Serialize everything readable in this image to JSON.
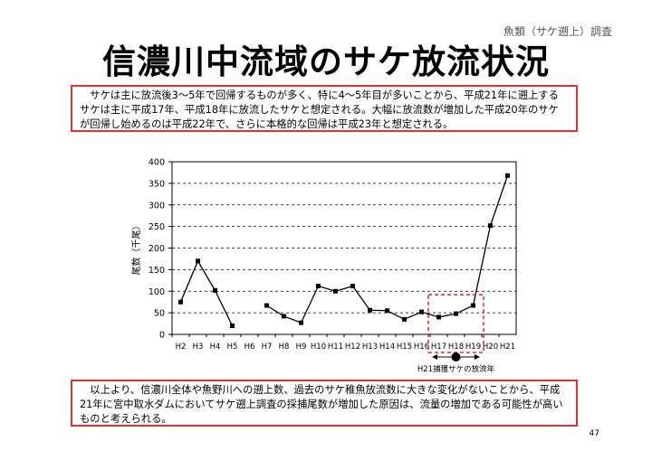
{
  "header": {
    "tag": "魚類（サケ遡上）調査",
    "title": "信濃川中流域のサケ放流状況"
  },
  "intro_text": "サケは主に放流後3～5年で回帰するものが多く、特に4～5年目が多いことから、平成21年に遡上するサケは主に平成17年、平成18年に放流したサケと想定される。大幅に放流数が増加した平成20年のサケが回帰し始めるのは平成22年で、さらに本格的な回帰は平成23年と想定される。",
  "conclusion_text": "以上より、信濃川全体や魚野川への遡上数、過去のサケ稚魚放流数に大きな変化がないことから、平成21年に宮中取水ダムにおいてサケ遡上調査の採捕尾数が増加した原因は、流量の増加である可能性が高いものと考えられる。",
  "page_number": "47",
  "colors": {
    "highlight": "#e03030",
    "line": "#000000"
  },
  "chart_data": {
    "type": "line",
    "title": "",
    "xlabel": "",
    "ylabel": "尾数（千尾）",
    "ylim": [
      0,
      400
    ],
    "yticks": [
      0,
      50,
      100,
      150,
      200,
      250,
      300,
      350,
      400
    ],
    "grid": "horizontal dashed",
    "categories": [
      "H2",
      "H3",
      "H4",
      "H5",
      "H6",
      "H7",
      "H8",
      "H9",
      "H10",
      "H11",
      "H12",
      "H13",
      "H14",
      "H15",
      "H16",
      "H17",
      "H18",
      "H19",
      "H20",
      "H21"
    ],
    "values": [
      75,
      170,
      102,
      20,
      null,
      67,
      42,
      27,
      112,
      100,
      112,
      56,
      55,
      35,
      52,
      40,
      48,
      67,
      252,
      368
    ],
    "highlight_categories": [
      "H17",
      "H18",
      "H19"
    ],
    "annotation": "H21捕獲サケの放流年"
  }
}
